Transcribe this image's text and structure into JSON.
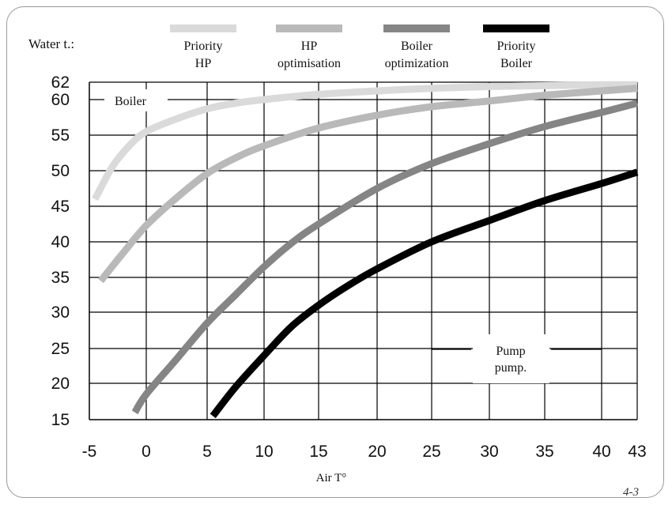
{
  "chart_data": {
    "type": "line",
    "ylabel": "Water t.:",
    "xlabel": "Air T°",
    "figure_label": "4-3",
    "x_ticks": [
      -5,
      0,
      5,
      10,
      15,
      20,
      25,
      30,
      35,
      40,
      43
    ],
    "y_ticks": [
      15,
      20,
      25,
      30,
      35,
      40,
      45,
      50,
      55,
      60,
      62
    ],
    "xlim": [
      -5,
      43
    ],
    "ylim": [
      15,
      62
    ],
    "grid": true,
    "legend_position": "top",
    "series": [
      {
        "name": "Priority HP",
        "color": "#dadada",
        "points": [
          [
            -4.5,
            46
          ],
          [
            -3,
            50.5
          ],
          [
            -1.5,
            53.5
          ],
          [
            0,
            55.5
          ],
          [
            2.5,
            57.3
          ],
          [
            5,
            58.7
          ],
          [
            7.5,
            59.5
          ],
          [
            10,
            60
          ],
          [
            15,
            60.6
          ],
          [
            20,
            61
          ],
          [
            25,
            61.3
          ],
          [
            30,
            61.5
          ],
          [
            35,
            61.6
          ],
          [
            40,
            61.7
          ],
          [
            43,
            61.7
          ]
        ]
      },
      {
        "name": "HP optimisation",
        "color": "#b9b9b9",
        "points": [
          [
            -4,
            34.5
          ],
          [
            -2,
            38.5
          ],
          [
            0,
            42.3
          ],
          [
            2.5,
            46.2
          ],
          [
            5,
            49.6
          ],
          [
            7.5,
            51.8
          ],
          [
            10,
            53.5
          ],
          [
            15,
            56
          ],
          [
            20,
            57.8
          ],
          [
            25,
            59
          ],
          [
            30,
            59.8
          ],
          [
            35,
            60.5
          ],
          [
            40,
            61
          ],
          [
            43,
            61.3
          ]
        ]
      },
      {
        "name": "Boiler optimization",
        "color": "#858585",
        "points": [
          [
            -1,
            16
          ],
          [
            0,
            18.5
          ],
          [
            2.5,
            23.5
          ],
          [
            5,
            28.5
          ],
          [
            7.5,
            32.5
          ],
          [
            10,
            36.5
          ],
          [
            12.5,
            39.8
          ],
          [
            15,
            42.5
          ],
          [
            20,
            47.5
          ],
          [
            25,
            51
          ],
          [
            30,
            53.8
          ],
          [
            35,
            56.2
          ],
          [
            40,
            58.2
          ],
          [
            43,
            59.5
          ]
        ]
      },
      {
        "name": "Priority Boiler",
        "color": "#000000",
        "points": [
          [
            5.5,
            15.5
          ],
          [
            7.5,
            19.5
          ],
          [
            10,
            24
          ],
          [
            12.5,
            28
          ],
          [
            15,
            31
          ],
          [
            17.5,
            33.8
          ],
          [
            20,
            36.2
          ],
          [
            25,
            40
          ],
          [
            30,
            43
          ],
          [
            35,
            45.8
          ],
          [
            40,
            48.2
          ],
          [
            43,
            49.8
          ]
        ]
      }
    ],
    "annotations": [
      {
        "id": "boiler",
        "text": "Boiler"
      },
      {
        "id": "pump",
        "lines": [
          "Pump",
          "pump."
        ]
      }
    ]
  }
}
